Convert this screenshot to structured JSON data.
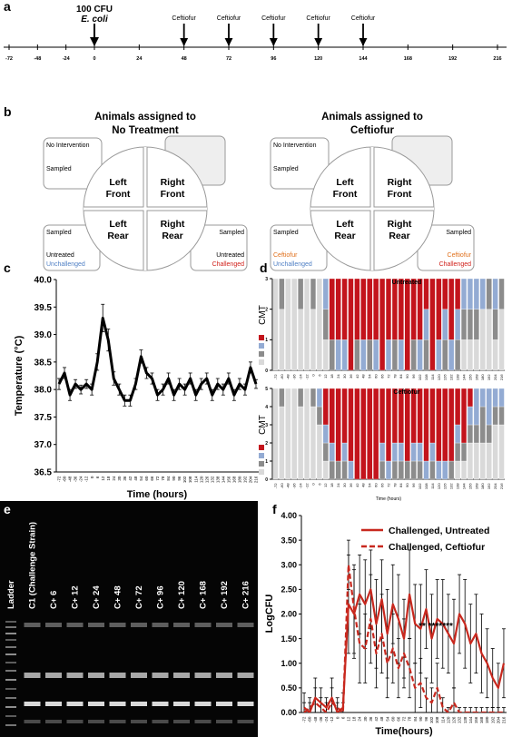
{
  "panel_labels": [
    "a",
    "b",
    "c",
    "d",
    "e",
    "f"
  ],
  "timeline": {
    "ticks": [
      -72,
      -48,
      -24,
      0,
      24,
      48,
      72,
      96,
      120,
      144,
      168,
      192,
      216
    ],
    "inoculation": {
      "time": 0,
      "label_1": "100 CFU",
      "label_2": "E. coli"
    },
    "treatments": [
      {
        "time": 48,
        "label": "Ceftiofur"
      },
      {
        "time": 72,
        "label": "Ceftiofur"
      },
      {
        "time": 96,
        "label": "Ceftiofur"
      },
      {
        "time": 120,
        "label": "Ceftiofur"
      },
      {
        "time": 144,
        "label": "Ceftiofur"
      }
    ]
  },
  "diagram": {
    "groups": [
      {
        "title_1": "Animals assigned to",
        "title_2": "No Treatment",
        "quarters": [
          [
            "Left",
            "Front"
          ],
          [
            "Right",
            "Front"
          ],
          [
            "Left",
            "Rear"
          ],
          [
            "Right",
            "Rear"
          ]
        ],
        "top_left": [
          "No Intervention",
          "Sampled"
        ],
        "bottom_left": [
          "Sampled",
          "Untreated",
          "Unchallenged"
        ],
        "bottom_right": [
          "Sampled",
          "Untreated",
          "Challenged"
        ]
      },
      {
        "title_1": "Animals assigned to",
        "title_2": "Ceftiofur",
        "quarters": [
          [
            "Left",
            "Front"
          ],
          [
            "Right",
            "Front"
          ],
          [
            "Left",
            "Rear"
          ],
          [
            "Right",
            "Rear"
          ]
        ],
        "top_left": [
          "No Intervention",
          "Sampled"
        ],
        "bottom_left": [
          "Sampled",
          "Ceftiofur",
          "Unchallenged"
        ],
        "bottom_right": [
          "Sampled",
          "Ceftiofur",
          "Challenged"
        ]
      }
    ]
  },
  "chart_data": [
    {
      "type": "line",
      "x_label": "Time (hours)",
      "y_label": "Temperature (°C)",
      "categories": [
        "-72",
        "-60",
        "-48",
        "-36",
        "-24",
        "-12",
        "0",
        "6",
        "12",
        "18",
        "24",
        "30",
        "36",
        "42",
        "48",
        "54",
        "60",
        "66",
        "72",
        "78",
        "84",
        "90",
        "96",
        "102",
        "108",
        "114",
        "120",
        "126",
        "132",
        "138",
        "144",
        "156",
        "168",
        "180",
        "192",
        "204",
        "216"
      ],
      "series": [
        {
          "color": "#000000",
          "dash": false,
          "values": [
            38.1,
            38.3,
            37.9,
            38.1,
            38.0,
            38.1,
            38.0,
            38.5,
            39.3,
            38.9,
            38.2,
            38.0,
            37.8,
            37.8,
            38.1,
            38.6,
            38.3,
            38.2,
            37.9,
            38.0,
            38.2,
            37.9,
            38.1,
            38.0,
            38.2,
            37.9,
            38.1,
            38.2,
            37.9,
            38.1,
            38.0,
            38.2,
            37.9,
            38.1,
            38.0,
            38.4,
            38.1
          ],
          "errors": [
            0.1,
            0.1,
            0.1,
            0.08,
            0.08,
            0.08,
            0.1,
            0.15,
            0.25,
            0.2,
            0.12,
            0.1,
            0.1,
            0.1,
            0.1,
            0.12,
            0.1,
            0.1,
            0.1,
            0.1,
            0.1,
            0.1,
            0.1,
            0.1,
            0.1,
            0.1,
            0.1,
            0.1,
            0.1,
            0.1,
            0.1,
            0.1,
            0.1,
            0.1,
            0.1,
            0.1,
            0.08
          ]
        }
      ],
      "ylim": [
        36.5,
        40
      ],
      "yticks": [
        36.5,
        {
          "value": 37,
          "label": "37.0"
        },
        37.5,
        {
          "value": 38,
          "label": "38.0"
        },
        38.5,
        {
          "value": 39,
          "label": "39.0"
        },
        39.5,
        {
          "value": 40,
          "label": "40.0"
        }
      ]
    },
    {
      "type": "stacked_bar",
      "title": "Untreated",
      "y_label": "CMT",
      "categories": [
        "-72",
        "-60",
        "-48",
        "-36",
        "-24",
        "-12",
        "0",
        "6",
        "12",
        "18",
        "24",
        "30",
        "36",
        "42",
        "48",
        "54",
        "60",
        "66",
        "72",
        "78",
        "84",
        "90",
        "96",
        "102",
        "108",
        "114",
        "120",
        "126",
        "132",
        "138",
        "144",
        "156",
        "168",
        "180",
        "192",
        "204",
        "216"
      ],
      "series": [
        {
          "color": "#d9d9d9",
          "values": [
            3,
            2,
            3,
            3,
            2,
            3,
            2,
            3,
            1,
            0,
            0,
            0,
            0,
            0,
            0,
            0,
            0,
            0,
            0,
            0,
            0,
            0,
            0,
            0,
            0,
            0,
            0,
            0,
            0,
            0,
            1,
            1,
            1,
            2,
            2,
            1,
            2
          ]
        },
        {
          "color": "#8c8c8c",
          "values": [
            0,
            1,
            0,
            0,
            1,
            0,
            1,
            0,
            1,
            1,
            0,
            0,
            0,
            1,
            0,
            1,
            0,
            0,
            0,
            1,
            0,
            0,
            1,
            0,
            1,
            0,
            0,
            1,
            0,
            1,
            1,
            1,
            1,
            0,
            1,
            1,
            1
          ]
        },
        {
          "color": "#93abd3",
          "values": [
            0,
            0,
            0,
            0,
            0,
            0,
            0,
            0,
            1,
            0,
            1,
            1,
            0,
            0,
            1,
            0,
            1,
            0,
            1,
            0,
            1,
            0,
            0,
            1,
            1,
            0,
            1,
            1,
            1,
            1,
            1,
            1,
            1,
            1,
            0,
            1,
            0
          ]
        },
        {
          "color": "#c3141c",
          "values": [
            0,
            0,
            0,
            0,
            0,
            0,
            0,
            0,
            0,
            2,
            2,
            2,
            3,
            2,
            2,
            2,
            2,
            3,
            2,
            2,
            2,
            3,
            2,
            2,
            1,
            3,
            2,
            1,
            2,
            1,
            0,
            0,
            0,
            0,
            0,
            0,
            0
          ]
        }
      ],
      "ylim": [
        0,
        3
      ],
      "yticks": [
        0,
        1,
        2,
        3
      ]
    },
    {
      "type": "stacked_bar",
      "title": "Ceftiofur",
      "y_label": "CMT",
      "x_label": "Time (hours)",
      "categories": [
        "-72",
        "-60",
        "-48",
        "-36",
        "-24",
        "-12",
        "0",
        "6",
        "12",
        "18",
        "24",
        "30",
        "36",
        "42",
        "48",
        "54",
        "60",
        "66",
        "72",
        "78",
        "84",
        "90",
        "96",
        "102",
        "108",
        "114",
        "120",
        "126",
        "132",
        "138",
        "144",
        "156",
        "168",
        "180",
        "192",
        "204",
        "216"
      ],
      "series": [
        {
          "color": "#d9d9d9",
          "values": [
            5,
            4,
            5,
            5,
            4,
            5,
            4,
            3,
            1,
            0,
            0,
            0,
            0,
            0,
            0,
            0,
            0,
            0,
            0,
            0,
            0,
            0,
            0,
            0,
            0,
            0,
            0,
            0,
            0,
            1,
            1,
            2,
            2,
            2,
            2,
            3,
            3
          ]
        },
        {
          "color": "#8c8c8c",
          "values": [
            0,
            1,
            0,
            0,
            1,
            0,
            1,
            1,
            1,
            1,
            1,
            1,
            0,
            0,
            0,
            0,
            0,
            1,
            0,
            1,
            1,
            1,
            1,
            1,
            0,
            1,
            0,
            0,
            1,
            1,
            1,
            1,
            1,
            2,
            1,
            1,
            1
          ]
        },
        {
          "color": "#93abd3",
          "values": [
            0,
            0,
            0,
            0,
            0,
            0,
            0,
            1,
            1,
            1,
            0,
            1,
            1,
            0,
            0,
            0,
            0,
            1,
            1,
            1,
            1,
            0,
            1,
            1,
            1,
            1,
            1,
            1,
            0,
            1,
            0,
            1,
            2,
            1,
            2,
            1,
            1
          ]
        },
        {
          "color": "#c3141c",
          "values": [
            0,
            0,
            0,
            0,
            0,
            0,
            0,
            0,
            2,
            3,
            4,
            3,
            4,
            5,
            5,
            5,
            5,
            3,
            4,
            3,
            3,
            4,
            3,
            3,
            4,
            3,
            4,
            4,
            4,
            2,
            3,
            1,
            0,
            0,
            0,
            0,
            0
          ]
        }
      ],
      "ylim": [
        0,
        5
      ],
      "yticks": [
        0,
        1,
        2,
        3,
        4,
        5
      ]
    },
    {
      "type": "line",
      "x_label": "Time(hours)",
      "y_label": "LogCFU",
      "annotation": "** *******",
      "legend": "top-right",
      "categories": [
        "-72",
        "-60",
        "-48",
        "-36",
        "-24",
        "-12",
        "0",
        "6",
        "12",
        "18",
        "24",
        "30",
        "36",
        "42",
        "48",
        "54",
        "60",
        "66",
        "72",
        "78",
        "84",
        "90",
        "96",
        "102",
        "108",
        "114",
        "120",
        "126",
        "132",
        "138",
        "144",
        "156",
        "168",
        "180",
        "192",
        "204",
        "216"
      ],
      "series": [
        {
          "name": "Challenged, Untreated",
          "color": "#c8281e",
          "dash": false,
          "values": [
            0.1,
            0,
            0.3,
            0.2,
            0.1,
            0.3,
            0,
            0.1,
            2.2,
            2.0,
            2.4,
            2.2,
            2.5,
            1.8,
            2.3,
            1.6,
            2.2,
            1.9,
            1.5,
            2.4,
            1.8,
            1.7,
            2.1,
            1.5,
            1.9,
            1.8,
            1.6,
            1.4,
            2.0,
            1.8,
            1.4,
            1.6,
            1.2,
            1.0,
            0.7,
            0.5,
            1.0
          ],
          "errors": [
            0.3,
            0.2,
            0.4,
            0.3,
            0.2,
            0.4,
            0.2,
            0.3,
            1.0,
            0.9,
            0.8,
            0.9,
            0.8,
            0.9,
            0.8,
            0.9,
            0.8,
            0.9,
            0.8,
            0.9,
            0.8,
            0.9,
            0.8,
            0.9,
            0.8,
            0.9,
            0.8,
            0.9,
            0.8,
            0.9,
            0.8,
            0.8,
            0.8,
            0.7,
            0.6,
            0.5,
            0.7
          ]
        },
        {
          "name": "Challenged, Ceftiofur",
          "color": "#c8281e",
          "dash": true,
          "values": [
            0,
            0.1,
            0.2,
            0.1,
            0,
            0.2,
            0.1,
            0,
            3.0,
            2.1,
            1.4,
            1.3,
            1.9,
            1.2,
            1.6,
            1.0,
            1.3,
            0.9,
            1.2,
            0.9,
            0.5,
            0.6,
            0.3,
            0.2,
            0.5,
            0.1,
            0,
            0.2,
            0,
            0,
            0,
            0,
            0,
            0,
            0,
            0,
            0
          ],
          "errors": [
            0.2,
            0.2,
            0.3,
            0.2,
            0.2,
            0.3,
            0.2,
            0.2,
            0.5,
            0.9,
            0.8,
            0.7,
            0.9,
            0.7,
            0.8,
            0.7,
            0.7,
            0.6,
            0.7,
            0.6,
            0.5,
            0.5,
            0.4,
            0.3,
            0.5,
            0.2,
            0.1,
            0.3,
            0.1,
            0.1,
            0.1,
            0.1,
            0.1,
            0.1,
            0.1,
            0.1,
            0.1
          ]
        }
      ],
      "ylim": [
        0,
        4
      ],
      "yticks": [
        {
          "value": 0,
          "label": "0.00"
        },
        {
          "value": 0.5,
          "label": "0.50"
        },
        {
          "value": 1,
          "label": "1.00"
        },
        {
          "value": 1.5,
          "label": "1.50"
        },
        {
          "value": 2,
          "label": "2.00"
        },
        {
          "value": 2.5,
          "label": "2.50"
        },
        {
          "value": 3,
          "label": "3.00"
        },
        {
          "value": 3.5,
          "label": "3.50"
        },
        {
          "value": 4,
          "label": "4.00"
        }
      ]
    }
  ],
  "gel": {
    "lanes": [
      "Ladder",
      "C1 (Challenge Strain)",
      "C+ 6",
      "C+ 12",
      "C+ 24",
      "C+ 48",
      "C+ 72",
      "C+ 96",
      "C+ 120",
      "C+ 168",
      "C+ 192",
      "C+ 216"
    ]
  }
}
